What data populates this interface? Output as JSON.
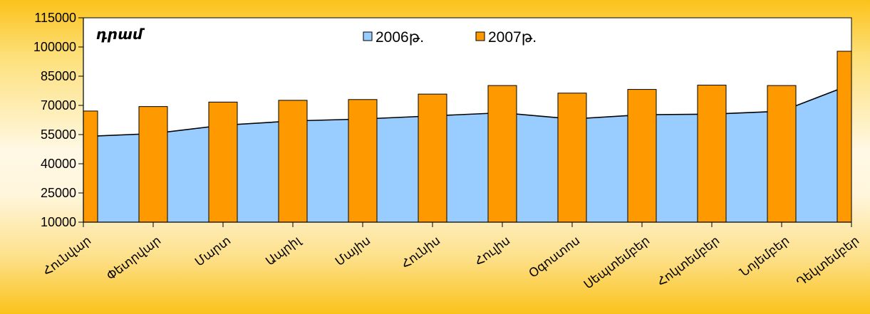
{
  "chart_data": {
    "type": "area+bar",
    "unit_label": "դրամ",
    "categories": [
      "Հունվար",
      "Փետրվար",
      "Մարտ",
      "Ապրիլ",
      "Մայիս",
      "Հունիս",
      "Հուլիս",
      "Օգոստոս",
      "Սեպտեմբեր",
      "Հոկտեմբեր",
      "Նոյեմբեր",
      "Դեկտեմբեր"
    ],
    "series": [
      {
        "name": "2006թ.",
        "kind": "area",
        "color": "#99ccff",
        "values": [
          54000,
          55500,
          59800,
          62000,
          63000,
          64600,
          66200,
          63000,
          65200,
          65500,
          67000,
          80800
        ]
      },
      {
        "name": "2007թ.",
        "kind": "bar",
        "color": "#ff9900",
        "values": [
          67100,
          69400,
          71700,
          72600,
          73000,
          75800,
          80200,
          76300,
          78200,
          80400,
          80200,
          97800
        ]
      }
    ],
    "yticks": [
      "10000",
      "25000",
      "40000",
      "55000",
      "70000",
      "85000",
      "100000",
      "115000"
    ],
    "ylim": [
      10000,
      115000
    ],
    "legend_position": "top-center",
    "grid": false,
    "colors": {
      "axis": "#000000",
      "plot_background": "#ffffff",
      "frame_background": "#fbc21a"
    }
  }
}
